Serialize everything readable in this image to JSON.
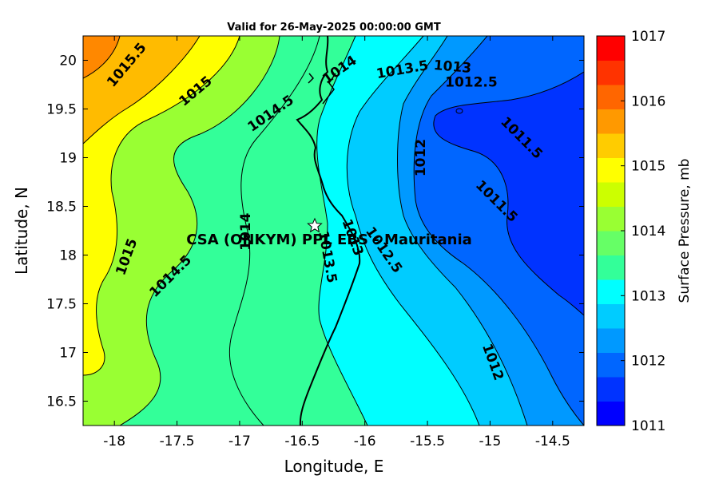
{
  "chart_data": {
    "type": "contour",
    "title": "Valid for 26-May-2025 00:00:00 GMT",
    "xlabel": "Longitude, E",
    "ylabel": "Latitude, N",
    "xlim": [
      -18.25,
      -14.25
    ],
    "ylim": [
      16.25,
      20.25
    ],
    "x_ticks": [
      -18,
      -17.5,
      -17,
      -16.5,
      -16,
      -15.5,
      -15,
      -14.5
    ],
    "x_tick_labels": [
      "-18",
      "-17.5",
      "-17",
      "-16.5",
      "-16",
      "-15.5",
      "-15",
      "-14.5"
    ],
    "y_ticks": [
      16.5,
      17,
      17.5,
      18,
      18.5,
      19,
      19.5,
      20
    ],
    "y_tick_labels": [
      "16.5",
      "17",
      "17.5",
      "18",
      "18.5",
      "19",
      "19.5",
      "20"
    ],
    "colorbar": {
      "label": "Surface Pressure, mb",
      "min": 1011,
      "max": 1017,
      "tick_values": [
        1011,
        1012,
        1013,
        1014,
        1015,
        1016,
        1017
      ],
      "tick_labels": [
        "1011",
        "1012",
        "1013",
        "1014",
        "1015",
        "1016",
        "1017"
      ],
      "levels": [
        1011,
        1011.5,
        1012,
        1012.5,
        1013,
        1013.5,
        1014,
        1014.5,
        1015,
        1015.5,
        1016,
        1016.5,
        1017
      ],
      "colors": [
        "#0000ff",
        "#0033ff",
        "#0066ff",
        "#0099ff",
        "#00ccff",
        "#00ffff",
        "#33ff99",
        "#66ff66",
        "#99ff33",
        "#ccff00",
        "#ffff00",
        "#ffcc00",
        "#ff9900",
        "#ff6600",
        "#ff3300",
        "#ff0000"
      ]
    },
    "contour_labels": [
      {
        "text": "1015.5",
        "lon": -17.9,
        "lat": 19.95
      },
      {
        "text": "1015",
        "lon": -17.35,
        "lat": 19.68
      },
      {
        "text": "1014.5",
        "lon": -16.75,
        "lat": 19.45
      },
      {
        "text": "1014",
        "lon": -16.2,
        "lat": 19.9
      },
      {
        "text": "1013.5",
        "lon": -15.7,
        "lat": 19.9
      },
      {
        "text": "1013",
        "lon": -15.3,
        "lat": 19.93
      },
      {
        "text": "1012.5",
        "lon": -15.15,
        "lat": 19.77
      },
      {
        "text": "1012",
        "lon": -15.55,
        "lat": 19.0
      },
      {
        "text": "1011.5",
        "lon": -14.75,
        "lat": 19.2
      },
      {
        "text": "1011.5",
        "lon": -14.95,
        "lat": 18.55
      },
      {
        "text": "1015",
        "lon": -17.9,
        "lat": 17.98
      },
      {
        "text": "1014.5",
        "lon": -17.55,
        "lat": 17.78
      },
      {
        "text": "1014",
        "lon": -16.95,
        "lat": 18.24
      },
      {
        "text": "1013.5",
        "lon": -16.3,
        "lat": 17.98
      },
      {
        "text": "1013",
        "lon": -16.1,
        "lat": 18.18
      },
      {
        "text": "1012.5",
        "lon": -15.85,
        "lat": 18.05
      },
      {
        "text": "1012",
        "lon": -14.98,
        "lat": 16.9
      }
    ],
    "annotations": [
      {
        "text": "CSA (ONKYM) PPL EBS - Mauritania",
        "lon": -16.4,
        "lat": 18.3,
        "marker": "star"
      }
    ],
    "grid": false,
    "legend": "none"
  }
}
